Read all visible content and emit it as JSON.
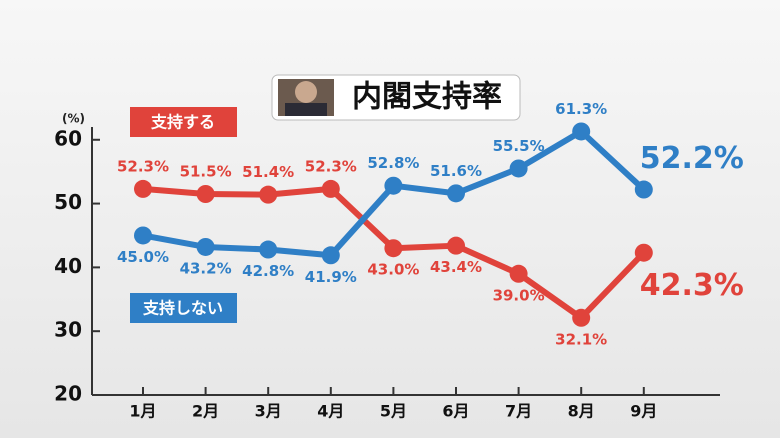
{
  "chart_data": {
    "type": "line",
    "title": "内閣支持率",
    "y_label": "(%)",
    "categories": [
      "1月",
      "2月",
      "3月",
      "4月",
      "5月",
      "6月",
      "7月",
      "8月",
      "9月"
    ],
    "series": [
      {
        "name": "支持する",
        "color": "#e0433b",
        "values": [
          52.3,
          51.5,
          51.4,
          52.3,
          43.0,
          43.4,
          39.0,
          32.1,
          42.3
        ],
        "value_labels": [
          "52.3%",
          "51.5%",
          "51.4%",
          "52.3%",
          "43.0%",
          "43.4%",
          "39.0%",
          "32.1%",
          "42.3%"
        ]
      },
      {
        "name": "支持しない",
        "color": "#2f7fc6",
        "values": [
          45.0,
          43.2,
          42.8,
          41.9,
          52.8,
          51.6,
          55.5,
          61.3,
          52.2
        ],
        "value_labels": [
          "45.0%",
          "43.2%",
          "42.8%",
          "41.9%",
          "52.8%",
          "51.6%",
          "55.5%",
          "61.3%",
          "52.2%"
        ]
      }
    ],
    "ylim": [
      20,
      62
    ],
    "yticks": [
      20,
      30,
      40,
      50,
      60
    ]
  }
}
